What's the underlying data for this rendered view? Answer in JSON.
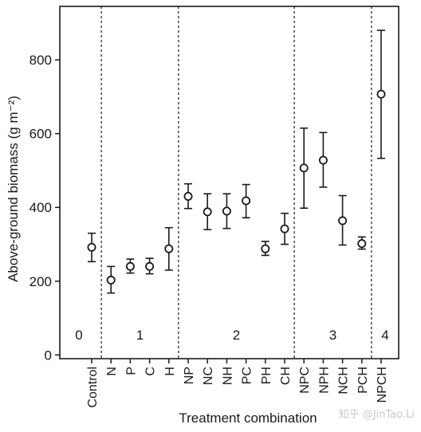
{
  "chart_data": {
    "type": "scatter",
    "xlabel": "Treatment combination",
    "ylabel": "Above-ground biomass (g m⁻²)",
    "ylim": [
      -10,
      945
    ],
    "yticks": [
      0,
      200,
      400,
      600,
      800
    ],
    "grid": false,
    "categories": [
      "Control",
      "N",
      "P",
      "C",
      "H",
      "NP",
      "NC",
      "NH",
      "PC",
      "PH",
      "CH",
      "NPC",
      "NPH",
      "NCH",
      "PCH",
      "NPCH"
    ],
    "values": [
      292,
      203,
      240,
      240,
      288,
      430,
      388,
      390,
      418,
      288,
      342,
      507,
      528,
      364,
      302,
      707
    ],
    "error_low": [
      253,
      168,
      222,
      220,
      230,
      397,
      340,
      343,
      372,
      270,
      300,
      398,
      455,
      298,
      287,
      533
    ],
    "error_high": [
      330,
      240,
      260,
      262,
      345,
      464,
      437,
      437,
      462,
      308,
      384,
      615,
      603,
      432,
      320,
      880
    ],
    "group_labels": [
      "0",
      "1",
      "2",
      "3",
      "4"
    ],
    "group_dividers_after": [
      0,
      4,
      10,
      14
    ]
  },
  "watermark": "知乎 @JinTao.Li"
}
